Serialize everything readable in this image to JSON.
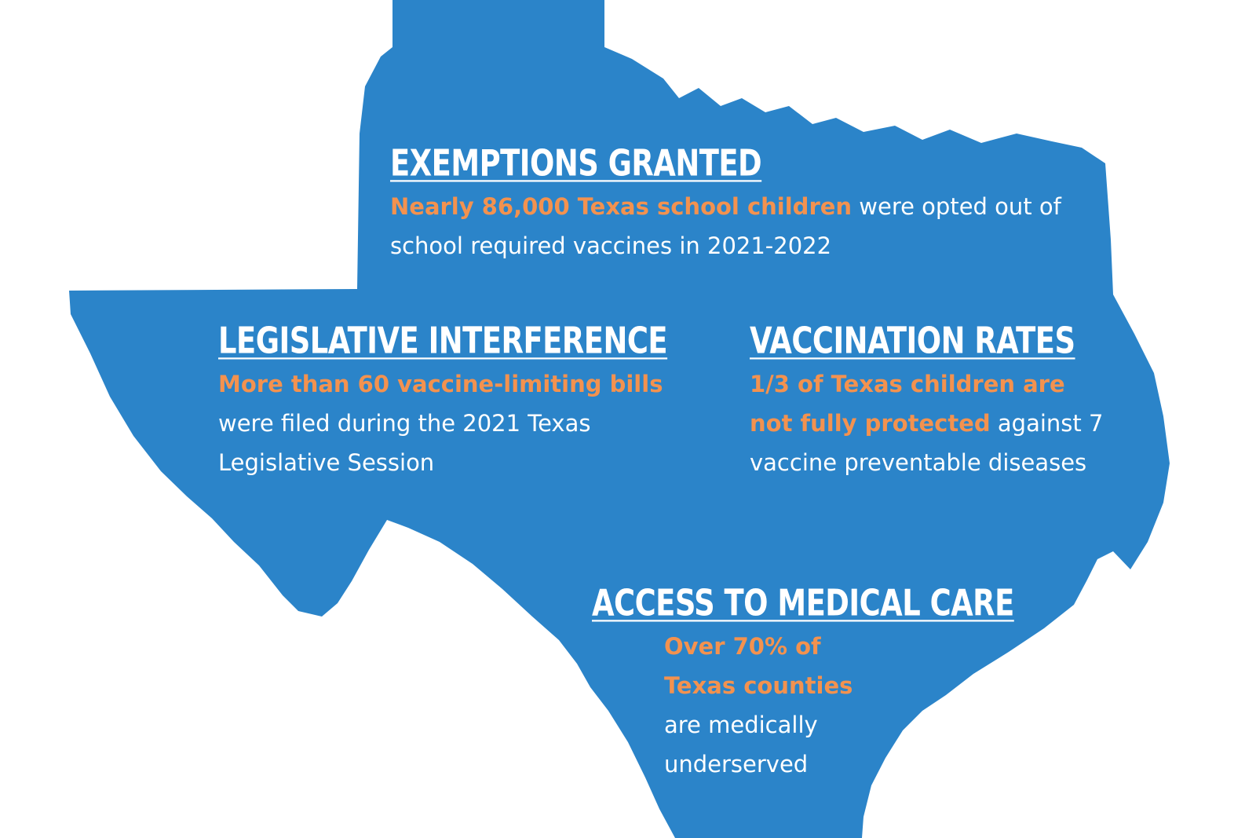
{
  "infographic": {
    "colors": {
      "map_fill": "#2b84c9",
      "highlight": "#f3924f",
      "text": "#ffffff",
      "background": "#ffffff"
    },
    "sections": {
      "exemptions": {
        "heading": "EXEMPTIONS GRANTED",
        "highlight": "Nearly 86,000 Texas school children",
        "rest": "were opted out of school required vaccines in 2021-2022"
      },
      "legislative": {
        "heading": "LEGISLATIVE INTERFERENCE",
        "highlight": "More than 60 vaccine-limiting bills",
        "rest": "were filed during the 2021 Texas Legislative Session"
      },
      "vaccination": {
        "heading": "VACCINATION RATES",
        "highlight": "1/3 of Texas children are not fully protected",
        "rest": "against 7 vaccine preventable diseases"
      },
      "access": {
        "heading": "ACCESS TO MEDICAL CARE",
        "highlight": "Over 70% of Texas counties",
        "rest": "are medically underserved"
      }
    }
  }
}
